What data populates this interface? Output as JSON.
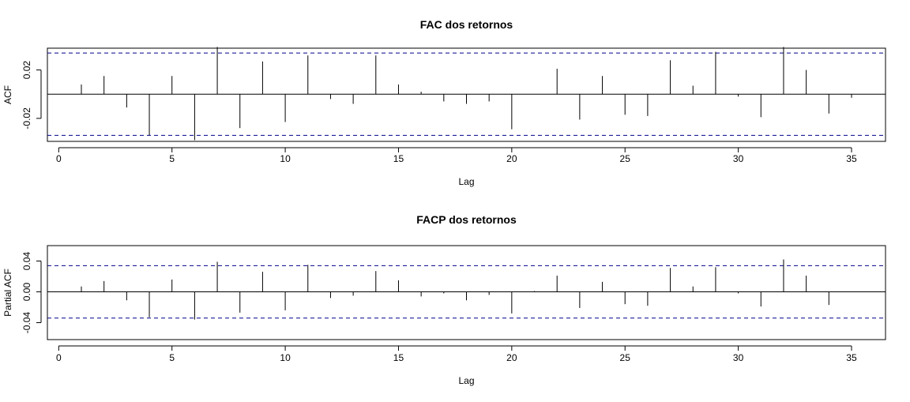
{
  "chart_data": [
    {
      "type": "bar",
      "title": "FAC dos retornos",
      "xlabel": "Lag",
      "ylabel": "ACF",
      "xlim": [
        -0.5,
        36.5
      ],
      "ylim": [
        -0.039,
        0.038
      ],
      "xticks": [
        0,
        5,
        10,
        15,
        20,
        25,
        30,
        35
      ],
      "yticks": [
        -0.02,
        0.02
      ],
      "ytick_labels": [
        "-0.02",
        "0.02"
      ],
      "confidence_bound": 0.034,
      "confidence_color": "#00008b",
      "bar_color": "#000000",
      "lags": [
        1,
        2,
        3,
        4,
        5,
        6,
        7,
        8,
        9,
        10,
        11,
        12,
        13,
        14,
        15,
        16,
        17,
        18,
        19,
        20,
        21,
        22,
        23,
        24,
        25,
        26,
        27,
        28,
        29,
        30,
        31,
        32,
        33,
        34,
        35
      ],
      "values": [
        0.008,
        0.015,
        -0.011,
        -0.034,
        0.015,
        -0.038,
        0.039,
        -0.028,
        0.027,
        -0.023,
        0.032,
        -0.004,
        -0.008,
        0.032,
        0.008,
        0.002,
        -0.006,
        -0.008,
        -0.006,
        -0.029,
        0.0,
        0.021,
        -0.021,
        0.015,
        -0.017,
        -0.018,
        0.028,
        0.007,
        0.035,
        -0.002,
        -0.019,
        0.039,
        0.02,
        -0.016,
        -0.003
      ]
    },
    {
      "type": "bar",
      "title": "FACP dos retornos",
      "xlabel": "Lag",
      "ylabel": "Partial ACF",
      "xlim": [
        -0.5,
        36.5
      ],
      "ylim": [
        -0.062,
        0.06
      ],
      "xticks": [
        0,
        5,
        10,
        15,
        20,
        25,
        30,
        35
      ],
      "yticks": [
        -0.04,
        0.0,
        0.04
      ],
      "ytick_labels": [
        "-0.04",
        "0.00",
        "0.04"
      ],
      "confidence_bound": 0.034,
      "confidence_color": "#00008b",
      "bar_color": "#000000",
      "lags": [
        1,
        2,
        3,
        4,
        5,
        6,
        7,
        8,
        9,
        10,
        11,
        12,
        13,
        14,
        15,
        16,
        17,
        18,
        19,
        20,
        21,
        22,
        23,
        24,
        25,
        26,
        27,
        28,
        29,
        30,
        31,
        32,
        33,
        34,
        35
      ],
      "values": [
        0.007,
        0.014,
        -0.011,
        -0.033,
        0.016,
        -0.036,
        0.039,
        -0.027,
        0.026,
        -0.024,
        0.035,
        -0.008,
        -0.005,
        0.027,
        0.015,
        -0.006,
        -0.002,
        -0.011,
        -0.004,
        -0.028,
        0.001,
        0.021,
        -0.021,
        0.013,
        -0.016,
        -0.018,
        0.031,
        0.007,
        0.032,
        -0.002,
        -0.019,
        0.042,
        0.021,
        -0.017,
        0.0
      ]
    }
  ]
}
